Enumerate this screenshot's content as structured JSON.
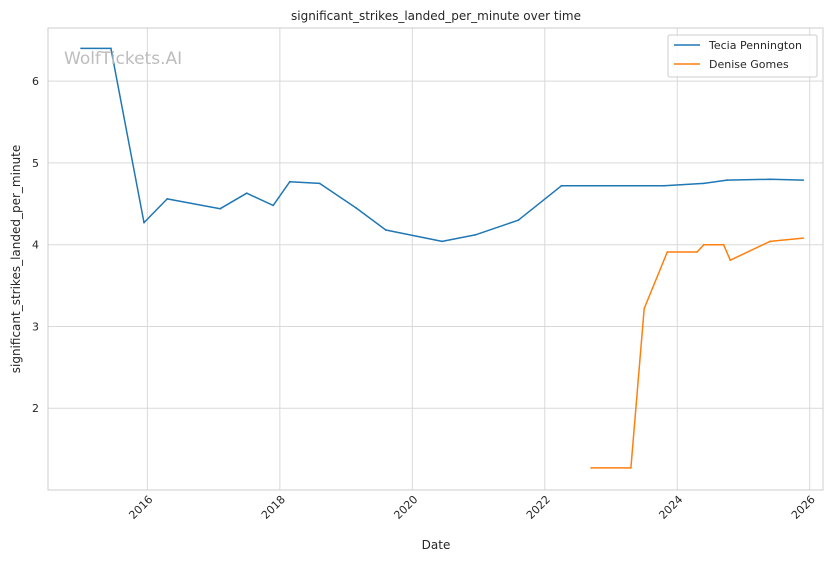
{
  "chart_data": {
    "type": "line",
    "title": "significant_strikes_landed_per_minute over time",
    "xlabel": "Date",
    "ylabel": "significant_strikes_landed_per_minute",
    "watermark": "WolfTickets.AI",
    "xlim": [
      2014.5,
      2026.2
    ],
    "ylim": [
      1.0,
      6.65
    ],
    "x_ticks": [
      2016,
      2018,
      2020,
      2022,
      2024,
      2026
    ],
    "x_tick_labels": [
      "2016",
      "2018",
      "2020",
      "2022",
      "2024",
      "2026"
    ],
    "y_ticks": [
      2,
      3,
      4,
      5,
      6
    ],
    "y_tick_labels": [
      "2",
      "3",
      "4",
      "5",
      "6"
    ],
    "grid": true,
    "legend_position": "top-right",
    "series": [
      {
        "name": "Tecia Pennington",
        "color": "#1f77b4",
        "x": [
          2015.0,
          2015.45,
          2015.95,
          2016.3,
          2017.1,
          2017.5,
          2017.9,
          2018.15,
          2018.6,
          2019.15,
          2019.6,
          2020.45,
          2020.95,
          2021.6,
          2022.25,
          2023.8,
          2024.4,
          2024.75,
          2025.4,
          2025.9
        ],
        "y": [
          6.4,
          6.4,
          4.27,
          4.56,
          4.44,
          4.63,
          4.48,
          4.77,
          4.75,
          4.45,
          4.18,
          4.04,
          4.12,
          4.3,
          4.72,
          4.72,
          4.75,
          4.79,
          4.8,
          4.79
        ]
      },
      {
        "name": "Denise Gomes",
        "color": "#ff7f0e",
        "x": [
          2022.7,
          2023.3,
          2023.5,
          2023.85,
          2024.3,
          2024.4,
          2024.7,
          2024.8,
          2025.4,
          2025.9
        ],
        "y": [
          1.27,
          1.27,
          3.22,
          3.91,
          3.91,
          4.0,
          4.0,
          3.81,
          4.04,
          4.08
        ]
      }
    ]
  }
}
